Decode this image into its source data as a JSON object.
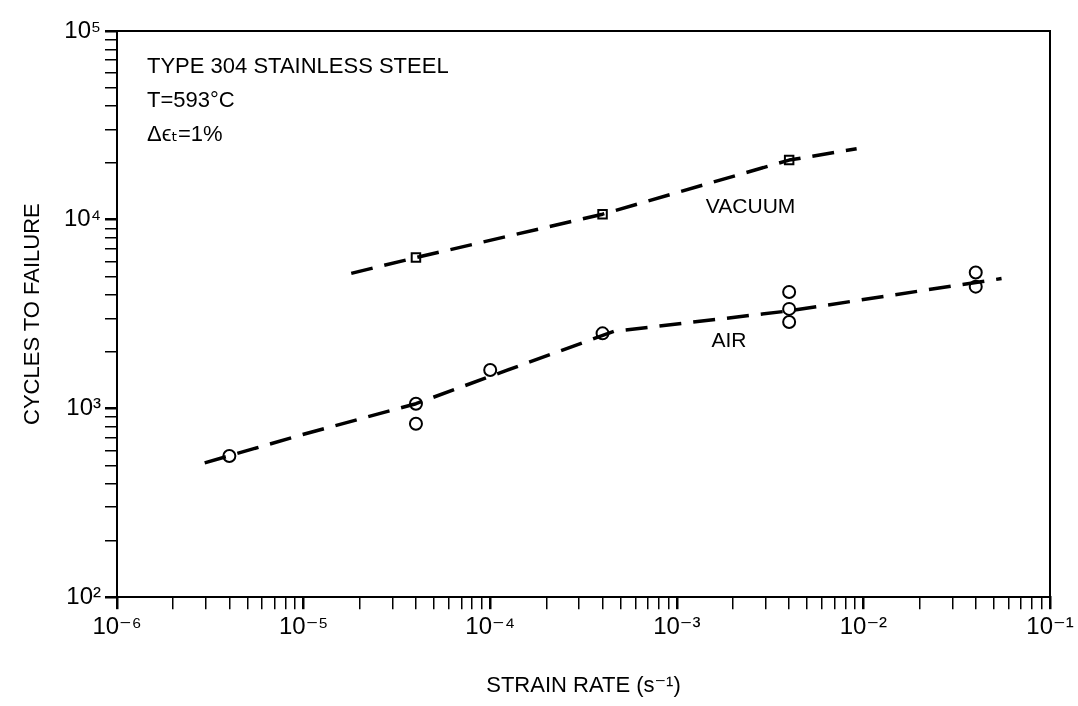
{
  "chart_data": {
    "type": "scatter",
    "xlabel": "STRAIN RATE (s⁻¹)",
    "ylabel": "CYCLES TO FAILURE",
    "annotations": [
      "TYPE 304 STAINLESS STEEL",
      "T=593°C",
      "Δϵₜ=1%"
    ],
    "log": "xy",
    "grid": false,
    "legend": false,
    "xlim": [
      1e-06,
      0.1
    ],
    "ylim": [
      100,
      100000
    ],
    "xticks": [
      {
        "value": 1e-06,
        "label": "10⁻⁶"
      },
      {
        "value": 2e-06,
        "label": null
      },
      {
        "value": 3e-06,
        "label": null
      },
      {
        "value": 4e-06,
        "label": null
      },
      {
        "value": 5e-06,
        "label": null
      },
      {
        "value": 6e-06,
        "label": null
      },
      {
        "value": 7e-06,
        "label": null
      },
      {
        "value": 8e-06,
        "label": null
      },
      {
        "value": 9e-06,
        "label": null
      },
      {
        "value": 1e-05,
        "label": "10⁻⁵"
      },
      {
        "value": 2e-05,
        "label": null
      },
      {
        "value": 3e-05,
        "label": null
      },
      {
        "value": 4e-05,
        "label": null
      },
      {
        "value": 5e-05,
        "label": null
      },
      {
        "value": 6e-05,
        "label": null
      },
      {
        "value": 7e-05,
        "label": null
      },
      {
        "value": 8e-05,
        "label": null
      },
      {
        "value": 9e-05,
        "label": null
      },
      {
        "value": 0.0001,
        "label": "10⁻⁴"
      },
      {
        "value": 0.0002,
        "label": null
      },
      {
        "value": 0.0003,
        "label": null
      },
      {
        "value": 0.0004,
        "label": null
      },
      {
        "value": 0.0005,
        "label": null
      },
      {
        "value": 0.0006,
        "label": null
      },
      {
        "value": 0.0007,
        "label": null
      },
      {
        "value": 0.0008,
        "label": null
      },
      {
        "value": 0.0009,
        "label": null
      },
      {
        "value": 0.001,
        "label": "10⁻³"
      },
      {
        "value": 0.002,
        "label": null
      },
      {
        "value": 0.003,
        "label": null
      },
      {
        "value": 0.004,
        "label": null
      },
      {
        "value": 0.005,
        "label": null
      },
      {
        "value": 0.006,
        "label": null
      },
      {
        "value": 0.007,
        "label": null
      },
      {
        "value": 0.008,
        "label": null
      },
      {
        "value": 0.009,
        "label": null
      },
      {
        "value": 0.01,
        "label": "10⁻²"
      },
      {
        "value": 0.02,
        "label": null
      },
      {
        "value": 0.03,
        "label": null
      },
      {
        "value": 0.04,
        "label": null
      },
      {
        "value": 0.05,
        "label": null
      },
      {
        "value": 0.06,
        "label": null
      },
      {
        "value": 0.07,
        "label": null
      },
      {
        "value": 0.08,
        "label": null
      },
      {
        "value": 0.09,
        "label": null
      },
      {
        "value": 0.1,
        "label": "10⁻¹"
      }
    ],
    "yticks": [
      {
        "value": 100,
        "label": "10²"
      },
      {
        "value": 200,
        "label": null
      },
      {
        "value": 300,
        "label": null
      },
      {
        "value": 400,
        "label": null
      },
      {
        "value": 500,
        "label": null
      },
      {
        "value": 600,
        "label": null
      },
      {
        "value": 700,
        "label": null
      },
      {
        "value": 800,
        "label": null
      },
      {
        "value": 900,
        "label": null
      },
      {
        "value": 1000,
        "label": "10³"
      },
      {
        "value": 2000,
        "label": null
      },
      {
        "value": 3000,
        "label": null
      },
      {
        "value": 4000,
        "label": null
      },
      {
        "value": 5000,
        "label": null
      },
      {
        "value": 6000,
        "label": null
      },
      {
        "value": 7000,
        "label": null
      },
      {
        "value": 8000,
        "label": null
      },
      {
        "value": 9000,
        "label": null
      },
      {
        "value": 10000,
        "label": "10⁴"
      },
      {
        "value": 20000,
        "label": null
      },
      {
        "value": 30000,
        "label": null
      },
      {
        "value": 40000,
        "label": null
      },
      {
        "value": 50000,
        "label": null
      },
      {
        "value": 60000,
        "label": null
      },
      {
        "value": 70000,
        "label": null
      },
      {
        "value": 80000,
        "label": null
      },
      {
        "value": 90000,
        "label": null
      },
      {
        "value": 100000,
        "label": "10⁵"
      }
    ],
    "series": [
      {
        "color": "#000000",
        "marker": "square",
        "x": [
          4e-05,
          0.0004,
          0.004
        ],
        "values": [
          6300,
          10700,
          20700
        ]
      },
      {
        "type": "line",
        "name": "VACUUM",
        "color": "#000000",
        "marker": "none",
        "line_style": "dashed",
        "x": [
          1.8e-05,
          4e-05,
          0.0004,
          0.004,
          0.0092
        ],
        "values": [
          5200,
          6300,
          10700,
          20700,
          23800
        ]
      },
      {
        "color": "#000000",
        "marker": "circle",
        "x": [
          4e-06,
          4e-05,
          4e-05,
          0.0001,
          0.0004,
          0.004,
          0.004,
          0.004,
          0.04,
          0.04
        ],
        "values": [
          560,
          1060,
          830,
          1600,
          2500,
          4140,
          3370,
          2870,
          5250,
          4420
        ]
      },
      {
        "type": "line",
        "name": "AIR",
        "color": "#000000",
        "marker": "none",
        "line_style": "dashed",
        "x": [
          2.95e-06,
          1e-05,
          4e-05,
          0.0001,
          0.00046,
          0.004,
          0.055
        ],
        "values": [
          515,
          730,
          1060,
          1480,
          2560,
          3290,
          4880
        ]
      }
    ]
  }
}
